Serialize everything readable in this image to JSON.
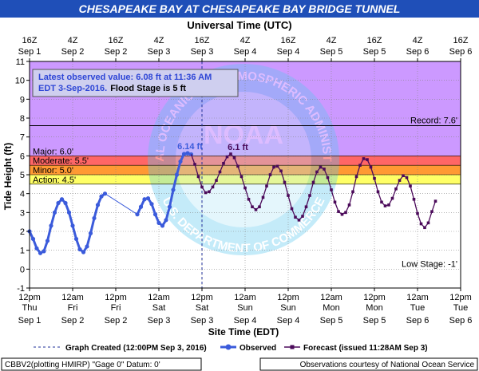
{
  "header": {
    "title": "CHESAPEAKE BAY AT CHESAPEAKE BAY BRIDGE TUNNEL",
    "top_axis_title": "Universal Time (UTC)"
  },
  "colors": {
    "title_band": "#1f4fb8",
    "title_text": "#ffffff",
    "record_zone": "#cc99ff",
    "major_zone": "#ff66cc",
    "moderate_zone": "#ff6666",
    "minor_zone": "#ff9933",
    "action_zone": "#ffff66",
    "observed": "#3b5bdb",
    "forecast": "#4b0a5a",
    "grid": "#888888"
  },
  "annotations": {
    "latest_line1": "Latest observed value: 6.08 ft at 11:36 AM",
    "latest_line2_a": "EDT 3-Sep-2016.",
    "latest_line2_b": "Flood Stage is 5 ft",
    "peak_observed": "6.14 ft",
    "peak_forecast": "6.1 ft",
    "watermark_agency": "NATIONAL OCEANIC AND ATMOSPHERIC ADMINISTRATION",
    "watermark_dept": "U.S. DEPARTMENT OF COMMERCE",
    "watermark_logo": "NOAA"
  },
  "footer": {
    "legend_created": "Graph Created (12:00PM Sep 3, 2016)",
    "legend_observed": "Observed",
    "legend_forecast": "Forecast (issued 11:28AM Sep 3)",
    "gauge_info": "CBBV2(plotting HMIRP) \"Gage 0\" Datum: 0'",
    "credit": "Observations courtesy of National Ocean Service"
  },
  "chart_data": {
    "type": "line",
    "title": "CHESAPEAKE BAY AT CHESAPEAKE BAY BRIDGE TUNNEL",
    "xlabel": "Site Time (EDT)",
    "x2label": "Universal Time (UTC)",
    "ylabel": "Tide Height (ft)",
    "ylim": [
      -1,
      11
    ],
    "yticks": [
      -1,
      0,
      1,
      2,
      3,
      4,
      5,
      6,
      7,
      8,
      9,
      10,
      11
    ],
    "xlim_hours": [
      0,
      120
    ],
    "xticks_bottom": [
      {
        "h": 0,
        "l1": "12pm",
        "l2": "Thu",
        "l3": "Sep 1"
      },
      {
        "h": 12,
        "l1": "12am",
        "l2": "Fri",
        "l3": "Sep 2"
      },
      {
        "h": 24,
        "l1": "12pm",
        "l2": "Fri",
        "l3": "Sep 2"
      },
      {
        "h": 36,
        "l1": "12am",
        "l2": "Sat",
        "l3": "Sep 3"
      },
      {
        "h": 48,
        "l1": "12pm",
        "l2": "Sat",
        "l3": "Sep 3"
      },
      {
        "h": 60,
        "l1": "12am",
        "l2": "Sun",
        "l3": "Sep 4"
      },
      {
        "h": 72,
        "l1": "12pm",
        "l2": "Sun",
        "l3": "Sep 4"
      },
      {
        "h": 84,
        "l1": "12am",
        "l2": "Mon",
        "l3": "Sep 5"
      },
      {
        "h": 96,
        "l1": "12pm",
        "l2": "Mon",
        "l3": "Sep 5"
      },
      {
        "h": 108,
        "l1": "12am",
        "l2": "Tue",
        "l3": "Sep 6"
      },
      {
        "h": 120,
        "l1": "12pm",
        "l2": "Tue",
        "l3": "Sep 6"
      }
    ],
    "xticks_top": [
      {
        "h": 0,
        "l1": "16Z",
        "l2": "Sep 1"
      },
      {
        "h": 12,
        "l1": "4Z",
        "l2": "Sep 2"
      },
      {
        "h": 24,
        "l1": "16Z",
        "l2": "Sep 2"
      },
      {
        "h": 36,
        "l1": "4Z",
        "l2": "Sep 3"
      },
      {
        "h": 48,
        "l1": "16Z",
        "l2": "Sep 3"
      },
      {
        "h": 60,
        "l1": "4Z",
        "l2": "Sep 4"
      },
      {
        "h": 72,
        "l1": "16Z",
        "l2": "Sep 4"
      },
      {
        "h": 84,
        "l1": "4Z",
        "l2": "Sep 5"
      },
      {
        "h": 96,
        "l1": "16Z",
        "l2": "Sep 5"
      },
      {
        "h": 108,
        "l1": "4Z",
        "l2": "Sep 6"
      },
      {
        "h": 120,
        "l1": "16Z",
        "l2": "Sep 6"
      }
    ],
    "thresholds": [
      {
        "name": "Record",
        "value": 7.6,
        "label": "Record: 7.6'"
      },
      {
        "name": "Major",
        "value": 6.0,
        "label": "Major: 6.0'"
      },
      {
        "name": "Moderate",
        "value": 5.5,
        "label": "Moderate: 5.5'"
      },
      {
        "name": "Minor",
        "value": 5.0,
        "label": "Minor: 5.0'"
      },
      {
        "name": "Action",
        "value": 4.5,
        "label": "Action: 4.5'"
      },
      {
        "name": "Low Stage",
        "value": -1,
        "label": "Low Stage: -1'"
      }
    ],
    "graph_created_hour": 48,
    "observed_segments": [
      [
        [
          0,
          2.0
        ],
        [
          1,
          1.6
        ],
        [
          2,
          1.1
        ],
        [
          3,
          0.85
        ],
        [
          4,
          0.95
        ],
        [
          5,
          1.5
        ],
        [
          6,
          2.3
        ],
        [
          7,
          3.0
        ],
        [
          8,
          3.5
        ],
        [
          9,
          3.7
        ],
        [
          10,
          3.5
        ],
        [
          11,
          3.0
        ],
        [
          12,
          2.3
        ],
        [
          13,
          1.6
        ],
        [
          14,
          1.05
        ],
        [
          15,
          0.9
        ],
        [
          16,
          1.2
        ],
        [
          17,
          1.9
        ],
        [
          18,
          2.7
        ],
        [
          19,
          3.4
        ],
        [
          20,
          3.85
        ],
        [
          21,
          4.0
        ]
      ],
      [
        [
          21,
          4.0
        ],
        [
          30,
          2.9
        ]
      ],
      [
        [
          30,
          2.9
        ],
        [
          31,
          3.3
        ],
        [
          32,
          3.7
        ],
        [
          33,
          3.75
        ],
        [
          34,
          3.45
        ],
        [
          35,
          2.9
        ],
        [
          36,
          2.45
        ],
        [
          37,
          2.3
        ],
        [
          38,
          2.6
        ],
        [
          39,
          3.3
        ],
        [
          40,
          4.2
        ],
        [
          41,
          5.0
        ],
        [
          42,
          5.7
        ],
        [
          43,
          6.1
        ],
        [
          44,
          6.14
        ],
        [
          45,
          6.08
        ]
      ]
    ],
    "forecast": [
      [
        45,
        6.08
      ],
      [
        46,
        5.55
      ],
      [
        47,
        4.9
      ],
      [
        48,
        4.35
      ],
      [
        49,
        4.05
      ],
      [
        50,
        4.1
      ],
      [
        51,
        4.35
      ],
      [
        52,
        4.7
      ],
      [
        53,
        5.15
      ],
      [
        54,
        5.6
      ],
      [
        55,
        5.95
      ],
      [
        56,
        6.1
      ],
      [
        57,
        5.9
      ],
      [
        58,
        5.45
      ],
      [
        59,
        4.9
      ],
      [
        60,
        4.3
      ],
      [
        61,
        3.7
      ],
      [
        62,
        3.3
      ],
      [
        63,
        3.15
      ],
      [
        64,
        3.3
      ],
      [
        65,
        3.8
      ],
      [
        66,
        4.4
      ],
      [
        67,
        5.0
      ],
      [
        68,
        5.4
      ],
      [
        69,
        5.45
      ],
      [
        70,
        5.2
      ],
      [
        71,
        4.6
      ],
      [
        72,
        3.9
      ],
      [
        73,
        3.2
      ],
      [
        74,
        2.75
      ],
      [
        75,
        2.6
      ],
      [
        76,
        2.8
      ],
      [
        77,
        3.3
      ],
      [
        78,
        3.9
      ],
      [
        79,
        4.6
      ],
      [
        80,
        5.15
      ],
      [
        81,
        5.4
      ],
      [
        82,
        5.3
      ],
      [
        83,
        4.85
      ],
      [
        84,
        4.2
      ],
      [
        85,
        3.55
      ],
      [
        86,
        3.05
      ],
      [
        87,
        2.9
      ],
      [
        88,
        3.0
      ],
      [
        89,
        3.4
      ],
      [
        90,
        4.1
      ],
      [
        91,
        4.9
      ],
      [
        92,
        5.5
      ],
      [
        93,
        5.85
      ],
      [
        94,
        5.8
      ],
      [
        95,
        5.4
      ],
      [
        96,
        4.8
      ],
      [
        97,
        4.1
      ],
      [
        98,
        3.55
      ],
      [
        99,
        3.35
      ],
      [
        100,
        3.4
      ],
      [
        101,
        3.75
      ],
      [
        102,
        4.25
      ],
      [
        103,
        4.7
      ],
      [
        104,
        4.95
      ],
      [
        105,
        4.85
      ],
      [
        106,
        4.4
      ],
      [
        107,
        3.7
      ],
      [
        108,
        2.95
      ],
      [
        109,
        2.4
      ],
      [
        110,
        2.2
      ],
      [
        111,
        2.45
      ],
      [
        112,
        3.05
      ],
      [
        113,
        3.6
      ]
    ]
  }
}
